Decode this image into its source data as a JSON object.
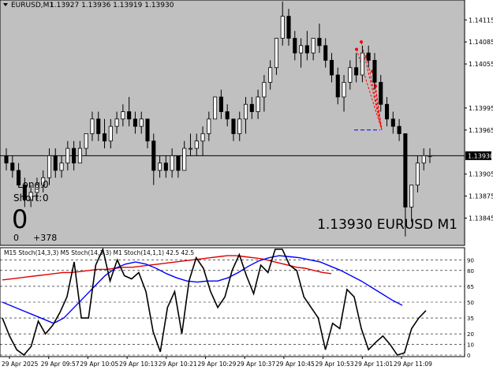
{
  "header": {
    "symbol": "EURUSD,M1",
    "ohlc": "1.13927 1.13936 1.13919 1.13930"
  },
  "overlay": {
    "long_label": "Long:",
    "long_value": "0",
    "short_label": "Short:",
    "short_value": "0",
    "big_value": "0",
    "pnl_left": "0",
    "pnl_right": "+378",
    "watermark": "1.13930 EURUSD M1"
  },
  "colors": {
    "price_bg": "#c0c0c0",
    "bull": "#ffffff",
    "bear": "#000000",
    "arrow": "#ff0000",
    "target": "#0000ff",
    "stoch_m15": "#e00000",
    "stoch_m5": "#0000ff",
    "stoch_m1": "#000000"
  },
  "icons": {
    "dropdown": "triangle-down-icon"
  },
  "chart_data": [
    {
      "type": "candlestick",
      "title": "EURUSD,M1",
      "ylim": [
        1.1381,
        1.1414
      ],
      "current_price": 1.1393,
      "current_price_label": "1.13930",
      "yticks": [
        "1.14115",
        "1.14085",
        "1.14055",
        "1.13995",
        "1.13965",
        "1.13905",
        "1.13875",
        "1.13845"
      ],
      "ytick_values": [
        1.14115,
        1.14085,
        1.14055,
        1.13995,
        1.13965,
        1.13905,
        1.13875,
        1.13845
      ],
      "target_level": 1.13965,
      "candles": [
        [
          1.1393,
          1.1394,
          1.1391,
          1.1392
        ],
        [
          1.1392,
          1.1393,
          1.139,
          1.1391
        ],
        [
          1.1391,
          1.1392,
          1.1389,
          1.1389
        ],
        [
          1.1389,
          1.139,
          1.1386,
          1.1387
        ],
        [
          1.1387,
          1.1389,
          1.1386,
          1.1388
        ],
        [
          1.1388,
          1.139,
          1.1387,
          1.1389
        ],
        [
          1.1389,
          1.1391,
          1.1388,
          1.139
        ],
        [
          1.139,
          1.1394,
          1.1389,
          1.1393
        ],
        [
          1.1393,
          1.1394,
          1.139,
          1.1391
        ],
        [
          1.1391,
          1.1393,
          1.139,
          1.1392
        ],
        [
          1.1392,
          1.1395,
          1.1391,
          1.1394
        ],
        [
          1.1394,
          1.1395,
          1.1391,
          1.1392
        ],
        [
          1.1392,
          1.1395,
          1.1392,
          1.1394
        ],
        [
          1.1394,
          1.1396,
          1.1393,
          1.1396
        ],
        [
          1.1396,
          1.1399,
          1.1395,
          1.1398
        ],
        [
          1.1398,
          1.1399,
          1.1395,
          1.1396
        ],
        [
          1.1396,
          1.1398,
          1.1394,
          1.1395
        ],
        [
          1.1395,
          1.1398,
          1.1394,
          1.1397
        ],
        [
          1.1397,
          1.1399,
          1.1396,
          1.1398
        ],
        [
          1.1398,
          1.14,
          1.1397,
          1.1399
        ],
        [
          1.1399,
          1.1401,
          1.1397,
          1.1398
        ],
        [
          1.1398,
          1.1399,
          1.1396,
          1.1397
        ],
        [
          1.1397,
          1.1399,
          1.1396,
          1.1398
        ],
        [
          1.1398,
          1.1398,
          1.1394,
          1.1395
        ],
        [
          1.1395,
          1.1396,
          1.1389,
          1.1391
        ],
        [
          1.1391,
          1.1393,
          1.139,
          1.1392
        ],
        [
          1.1392,
          1.1393,
          1.139,
          1.1391
        ],
        [
          1.1391,
          1.1394,
          1.139,
          1.1393
        ],
        [
          1.1393,
          1.1393,
          1.139,
          1.1391
        ],
        [
          1.1391,
          1.1395,
          1.1391,
          1.1394
        ],
        [
          1.1394,
          1.1396,
          1.1393,
          1.1394
        ],
        [
          1.1394,
          1.1396,
          1.1393,
          1.1395
        ],
        [
          1.1395,
          1.1397,
          1.1393,
          1.1396
        ],
        [
          1.1396,
          1.1399,
          1.1395,
          1.1398
        ],
        [
          1.1398,
          1.1401,
          1.1398,
          1.1401
        ],
        [
          1.1401,
          1.1402,
          1.1398,
          1.1399
        ],
        [
          1.1399,
          1.14,
          1.1397,
          1.1398
        ],
        [
          1.1398,
          1.1398,
          1.1395,
          1.1396
        ],
        [
          1.1396,
          1.1399,
          1.1395,
          1.1398
        ],
        [
          1.1398,
          1.1401,
          1.1396,
          1.14
        ],
        [
          1.14,
          1.1401,
          1.1398,
          1.1399
        ],
        [
          1.1399,
          1.1402,
          1.1398,
          1.1401
        ],
        [
          1.1401,
          1.1404,
          1.1399,
          1.1403
        ],
        [
          1.1403,
          1.1406,
          1.1402,
          1.1405
        ],
        [
          1.1405,
          1.1409,
          1.1404,
          1.1409
        ],
        [
          1.1409,
          1.1414,
          1.1408,
          1.1412
        ],
        [
          1.1412,
          1.1413,
          1.1408,
          1.1409
        ],
        [
          1.1409,
          1.141,
          1.1406,
          1.1407
        ],
        [
          1.1407,
          1.1409,
          1.1405,
          1.1408
        ],
        [
          1.1408,
          1.141,
          1.1406,
          1.1407
        ],
        [
          1.1407,
          1.1409,
          1.1406,
          1.1409
        ],
        [
          1.1409,
          1.1411,
          1.1407,
          1.1408
        ],
        [
          1.1408,
          1.1409,
          1.1405,
          1.1406
        ],
        [
          1.1406,
          1.1407,
          1.1403,
          1.1404
        ],
        [
          1.1404,
          1.1405,
          1.14,
          1.1401
        ],
        [
          1.1401,
          1.1404,
          1.1399,
          1.1403
        ],
        [
          1.1403,
          1.1406,
          1.1402,
          1.1405
        ],
        [
          1.1405,
          1.1407,
          1.1403,
          1.1404
        ],
        [
          1.1404,
          1.1408,
          1.1403,
          1.1407
        ],
        [
          1.1407,
          1.1408,
          1.1405,
          1.1406
        ],
        [
          1.1406,
          1.1407,
          1.1402,
          1.1403
        ],
        [
          1.1403,
          1.1404,
          1.1399,
          1.14
        ],
        [
          1.14,
          1.1401,
          1.1397,
          1.1398
        ],
        [
          1.1398,
          1.1399,
          1.1396,
          1.1397
        ],
        [
          1.1397,
          1.1398,
          1.1395,
          1.1396
        ],
        [
          1.1396,
          1.1396,
          1.1382,
          1.1386
        ],
        [
          1.1386,
          1.1389,
          1.1384,
          1.1389
        ],
        [
          1.1389,
          1.1393,
          1.1388,
          1.1392
        ],
        [
          1.1392,
          1.1394,
          1.1391,
          1.1393
        ],
        [
          1.1393,
          1.1394,
          1.1392,
          1.1393
        ]
      ]
    },
    {
      "type": "line",
      "title": "M15 Stoch(14,3,3)  M5 Stoch(14,3,3)  M1 Stoch(14,1,1) 42.5 42.5",
      "ylim": [
        0,
        100
      ],
      "yticks": [
        0,
        10,
        20,
        35,
        50,
        65,
        80,
        90
      ],
      "xticks": [
        "29 Apr 2025",
        "29 Apr 09:57",
        "29 Apr 10:05",
        "29 Apr 10:13",
        "29 Apr 10:21",
        "29 Apr 10:29",
        "29 Apr 10:37",
        "29 Apr 10:45",
        "29 Apr 10:53",
        "29 Apr 11:01",
        "29 Apr 11:09"
      ],
      "series": [
        {
          "name": "M15 Stoch(14,3,3)",
          "values": [
            71,
            72,
            73,
            74,
            75,
            76,
            77,
            78,
            78,
            79,
            80,
            81,
            81,
            82,
            83,
            83,
            84,
            85,
            86,
            87,
            88,
            89,
            90,
            91,
            92,
            93,
            94,
            94,
            93,
            92,
            91,
            89,
            87,
            85,
            83,
            82,
            80,
            78,
            77
          ]
        },
        {
          "name": "M5 Stoch(14,3,3)",
          "values": [
            50,
            46,
            42,
            38,
            34,
            30,
            35,
            45,
            55,
            65,
            75,
            82,
            86,
            88,
            86,
            82,
            77,
            73,
            70,
            69,
            70,
            70,
            73,
            78,
            84,
            89,
            92,
            94,
            93,
            92,
            90,
            88,
            84,
            80,
            75,
            70,
            64,
            58,
            52,
            47
          ]
        },
        {
          "name": "M1 Stoch(14,1,1)",
          "values": [
            35,
            18,
            5,
            0,
            8,
            32,
            20,
            28,
            40,
            55,
            88,
            35,
            35,
            85,
            100,
            70,
            90,
            75,
            72,
            78,
            60,
            22,
            3,
            45,
            60,
            20,
            70,
            92,
            82,
            60,
            45,
            55,
            80,
            95,
            75,
            58,
            85,
            78,
            100,
            100,
            85,
            80,
            55,
            45,
            35,
            5,
            30,
            25,
            62,
            55,
            25,
            5,
            12,
            18,
            10,
            0,
            2,
            25,
            35,
            42
          ]
        }
      ]
    }
  ]
}
